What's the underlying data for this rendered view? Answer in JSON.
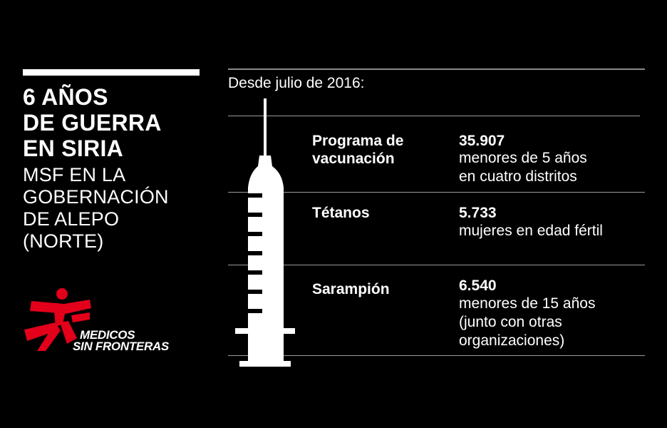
{
  "title_lines": [
    "6 AÑOS",
    "DE GUERRA",
    "EN SIRIA"
  ],
  "subtitle_lines": [
    "MSF EN LA",
    "GOBERNACIÓN",
    "DE ALEPO",
    "(NORTE)"
  ],
  "logo": {
    "line1": "MEDICOS",
    "line2": "SIN FRONTERAS",
    "color": "#e2001a"
  },
  "since": "Desde julio de 2016:",
  "rows": [
    {
      "label_lines": [
        "Programa de",
        "vacunación"
      ],
      "number": "35.907",
      "desc_lines": [
        "menores de 5 años",
        "en cuatro distritos"
      ]
    },
    {
      "label_lines": [
        "Tétanos"
      ],
      "number": "5.733",
      "desc_lines": [
        "mujeres en edad fértil"
      ]
    },
    {
      "label_lines": [
        "Sarampión"
      ],
      "number": "6.540",
      "desc_lines": [
        "menores de 15 años",
        "(junto con otras",
        "organizaciones)"
      ]
    }
  ]
}
